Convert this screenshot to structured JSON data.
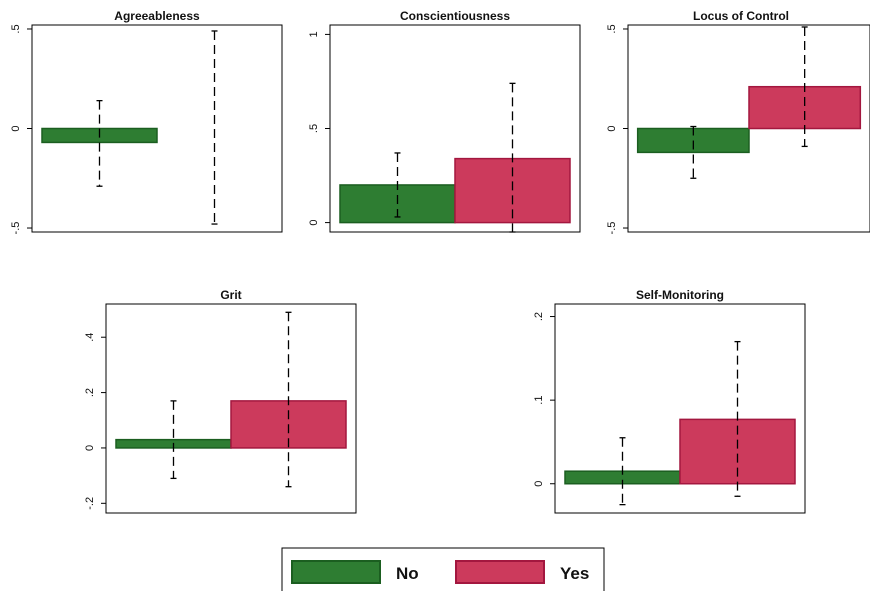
{
  "colors": {
    "No": "#2e7d32",
    "No_stroke": "#1b5e20",
    "Yes": "#cc3a5c",
    "Yes_stroke": "#a3173f"
  },
  "legend": {
    "items": [
      "No",
      "Yes"
    ]
  },
  "chart_data": [
    {
      "type": "bar",
      "title": "Agreeableness",
      "categories": [
        "No",
        "Yes"
      ],
      "ylim": [
        -0.5,
        0.5
      ],
      "yticks": [
        -0.5,
        0,
        0.5
      ],
      "ytick_labels": [
        "-.5",
        "0",
        ".5"
      ],
      "values": [
        -0.07,
        0.0
      ],
      "ci": [
        [
          -0.29,
          0.14
        ],
        [
          -0.48,
          0.49
        ]
      ]
    },
    {
      "type": "bar",
      "title": "Conscientiousness",
      "categories": [
        "No",
        "Yes"
      ],
      "ylim": [
        0,
        1
      ],
      "yticks": [
        0,
        0.5,
        1
      ],
      "ytick_labels": [
        "0",
        ".5",
        "1"
      ],
      "values": [
        0.2,
        0.34
      ],
      "ci": [
        [
          0.03,
          0.37
        ],
        [
          -0.05,
          0.74
        ]
      ]
    },
    {
      "type": "bar",
      "title": "Locus of Control",
      "categories": [
        "No",
        "Yes"
      ],
      "ylim": [
        -0.5,
        0.5
      ],
      "yticks": [
        -0.5,
        0,
        0.5
      ],
      "ytick_labels": [
        "-.5",
        "0",
        ".5"
      ],
      "values": [
        -0.12,
        0.21
      ],
      "ci": [
        [
          -0.25,
          0.01
        ],
        [
          -0.09,
          0.51
        ]
      ]
    },
    {
      "type": "bar",
      "title": "Grit",
      "categories": [
        "No",
        "Yes"
      ],
      "ylim": [
        -0.2,
        0.4
      ],
      "yticks": [
        -0.2,
        0,
        0.2,
        0.4
      ],
      "ytick_labels": [
        "-.2",
        "0",
        ".2",
        ".4"
      ],
      "values": [
        0.03,
        0.17
      ],
      "ci": [
        [
          -0.11,
          0.17
        ],
        [
          -0.14,
          0.49
        ]
      ]
    },
    {
      "type": "bar",
      "title": "Self-Monitoring",
      "categories": [
        "No",
        "Yes"
      ],
      "ylim": [
        0,
        0.2
      ],
      "yticks": [
        0,
        0.1,
        0.2
      ],
      "ytick_labels": [
        "0",
        ".1",
        ".2"
      ],
      "values": [
        0.015,
        0.077
      ],
      "ci": [
        [
          -0.025,
          0.055
        ],
        [
          -0.015,
          0.17
        ]
      ]
    }
  ]
}
